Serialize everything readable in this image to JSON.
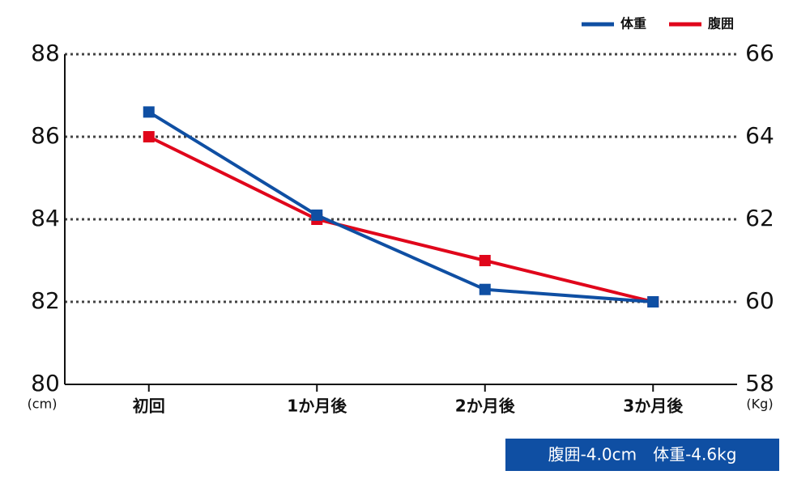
{
  "chart_data": {
    "type": "line",
    "categories": [
      "初回",
      "1か月後",
      "2か月後",
      "3か月後"
    ],
    "series": [
      {
        "name": "体重",
        "color": "#0f4fa3",
        "values": [
          64.6,
          62.1,
          60.3,
          60.0
        ],
        "axis": "y2"
      },
      {
        "name": "腹囲",
        "color": "#e0061b",
        "values": [
          86.0,
          84.0,
          83.0,
          82.0
        ]
      }
    ],
    "ylim": [
      80,
      88
    ],
    "yticks": [
      80,
      82,
      84,
      86,
      88
    ],
    "y2lim": [
      58,
      66
    ],
    "y2ticks": [
      58,
      60,
      62,
      64,
      66
    ],
    "ylabel": "(cm)",
    "y2label": "(Kg)",
    "annotation": "腹囲-4.0cm　体重-4.6kg",
    "grid": true,
    "legend": "top-right"
  }
}
